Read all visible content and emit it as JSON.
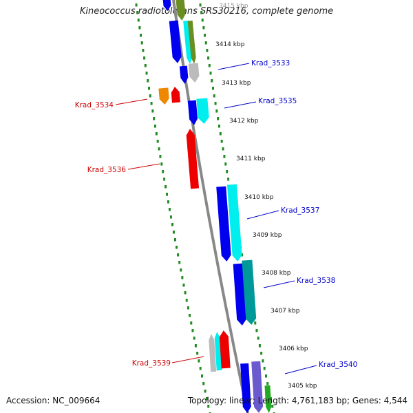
{
  "title": "Kineococcus radiotolerans SRS30216, complete genome",
  "accession": "Accession: NC_009664",
  "summary": "Topology: linear; Length: 4,761,183 bp; Genes: 4,544",
  "colors": {
    "backbone": "#888888",
    "tick_dots": "#228b22",
    "label_forward": "#0000cc",
    "label_reverse": "#cc0000",
    "blue": "#0000ee",
    "cyan": "#00eeee",
    "teal": "#009999",
    "red": "#ee0000",
    "orange": "#ee8800",
    "grey": "#bbbbbb",
    "olive": "#6b8e23",
    "purple": "#6a5acd",
    "green": "#22aa22"
  },
  "scale_labels": [
    "3415 kbp",
    "3414 kbp",
    "3413 kbp",
    "3412 kbp",
    "3411 kbp",
    "3410 kbp",
    "3409 kbp",
    "3408 kbp",
    "3407 kbp",
    "3406 kbp",
    "3405 kbp"
  ],
  "gene_labels": [
    {
      "text": "Krad_3533",
      "strand": "forward"
    },
    {
      "text": "Krad_3534",
      "strand": "reverse"
    },
    {
      "text": "Krad_3535",
      "strand": "forward"
    },
    {
      "text": "Krad_3536",
      "strand": "reverse"
    },
    {
      "text": "Krad_3537",
      "strand": "forward"
    },
    {
      "text": "Krad_3538",
      "strand": "forward"
    },
    {
      "text": "Krad_3539",
      "strand": "reverse"
    },
    {
      "text": "Krad_3540",
      "strand": "forward"
    }
  ]
}
